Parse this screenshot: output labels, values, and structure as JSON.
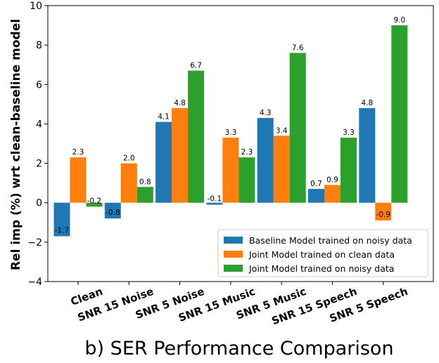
{
  "caption": "b) SER Performance Comparison",
  "chart_data": {
    "type": "bar",
    "title": "",
    "xlabel": "",
    "ylabel": "Rel imp (%) wrt clean-baseline model",
    "ylim": [
      -4,
      10
    ],
    "yticks": [
      -4,
      -2,
      0,
      2,
      4,
      6,
      8,
      10
    ],
    "ytick_labels": [
      "−4",
      "−2",
      "0",
      "2",
      "4",
      "6",
      "8",
      "10"
    ],
    "categories": [
      "Clean",
      "SNR 15 Noise",
      "SNR 5 Noise",
      "SNR 15 Music",
      "SNR 5 Music",
      "SNR 15 Speech",
      "SNR 5 Speech"
    ],
    "series": [
      {
        "name": "Baseline Model trained on noisy data",
        "color": "#1f77b4",
        "values": [
          -1.7,
          -0.8,
          4.1,
          -0.1,
          4.3,
          0.7,
          4.8
        ],
        "labels": [
          "-1.7",
          "-0.8",
          "4.1",
          "-0.1",
          "4.3",
          "0.7",
          "4.8"
        ]
      },
      {
        "name": "Joint Model trained on clean data",
        "color": "#ff7f0e",
        "values": [
          2.3,
          2.0,
          4.8,
          3.3,
          3.4,
          0.9,
          -0.9
        ],
        "labels": [
          "2.3",
          "2.0",
          "4.8",
          "3.3",
          "3.4",
          "0.9",
          "-0.9"
        ]
      },
      {
        "name": "Joint Model trained on noisy data",
        "color": "#2ca02c",
        "values": [
          -0.2,
          0.8,
          6.7,
          2.3,
          7.6,
          3.3,
          9.0
        ],
        "labels": [
          "-0.2",
          "0.8",
          "6.7",
          "2.3",
          "7.6",
          "3.3",
          "9.0"
        ]
      }
    ],
    "legend_position": "lower-right",
    "grid": false
  }
}
